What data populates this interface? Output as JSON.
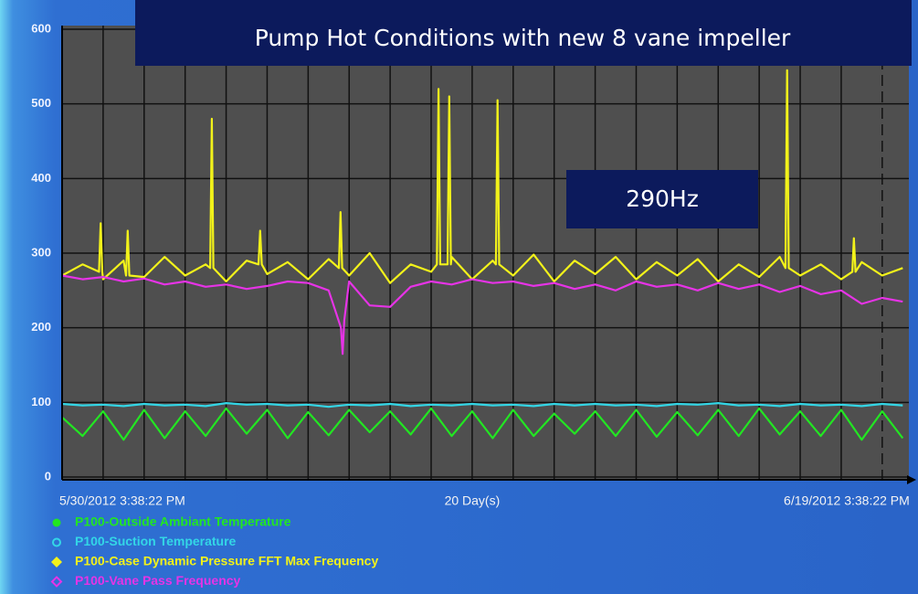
{
  "chart_data": {
    "type": "line",
    "title": "Pump Hot Conditions with new 8 vane impeller",
    "annotation": "290Hz",
    "x_span_label": "20 Day(s)",
    "xlim": [
      0,
      20.65
    ],
    "xticks": [
      {
        "value": 0,
        "label": "5/30/2012 3:38:22 PM"
      },
      {
        "value": 20,
        "label": "6/19/2012 3:38:22 PM"
      }
    ],
    "xminor_ticks": [
      1,
      2,
      3,
      4,
      5,
      6,
      7,
      8,
      9,
      10,
      11,
      12,
      13,
      14,
      15,
      16,
      17,
      18,
      19
    ],
    "ylim": [
      0,
      600
    ],
    "yticks": [
      0,
      100,
      200,
      300,
      400,
      500,
      600
    ],
    "grid": true,
    "series": [
      {
        "name": "P100-Outside Ambiant Temperature",
        "color": "#22e622",
        "marker": "circle",
        "x": [
          0,
          0.5,
          1,
          1.5,
          2,
          2.5,
          3,
          3.5,
          4,
          4.5,
          5,
          5.5,
          6,
          6.5,
          7,
          7.5,
          8,
          8.5,
          9,
          9.5,
          10,
          10.5,
          11,
          11.5,
          12,
          12.5,
          13,
          13.5,
          14,
          14.5,
          15,
          15.5,
          16,
          16.5,
          17,
          17.5,
          18,
          18.5,
          19,
          19.5,
          20,
          20.5
        ],
        "values": [
          80,
          55,
          88,
          50,
          90,
          52,
          88,
          55,
          92,
          58,
          90,
          52,
          87,
          56,
          90,
          60,
          88,
          57,
          92,
          55,
          88,
          52,
          90,
          55,
          85,
          58,
          88,
          55,
          90,
          54,
          87,
          56,
          90,
          55,
          92,
          57,
          88,
          55,
          90,
          50,
          88,
          52
        ]
      },
      {
        "name": "P100-Suction Temperature",
        "color": "#33d6e6",
        "marker": "open-circle",
        "x": [
          0,
          0.5,
          1,
          1.5,
          2,
          2.5,
          3,
          3.5,
          4,
          4.5,
          5,
          5.5,
          6,
          6.5,
          7,
          7.5,
          8,
          8.5,
          9,
          9.5,
          10,
          10.5,
          11,
          11.5,
          12,
          12.5,
          13,
          13.5,
          14,
          14.5,
          15,
          15.5,
          16,
          16.5,
          17,
          17.5,
          18,
          18.5,
          19,
          19.5,
          20,
          20.5
        ],
        "values": [
          98,
          96,
          97,
          95,
          98,
          96,
          97,
          95,
          99,
          97,
          98,
          96,
          97,
          94,
          97,
          96,
          98,
          95,
          97,
          96,
          98,
          96,
          97,
          95,
          98,
          96,
          98,
          96,
          97,
          95,
          98,
          97,
          99,
          96,
          97,
          95,
          98,
          96,
          97,
          95,
          98,
          96
        ]
      },
      {
        "name": "P100-Case Dynamic Pressure FFT Max Frequency",
        "color": "#f2f21a",
        "marker": "diamond",
        "x": [
          0,
          0.5,
          0.9,
          0.94,
          0.98,
          1,
          1.5,
          1.56,
          1.6,
          1.64,
          2,
          2.5,
          3,
          3.5,
          3.61,
          3.65,
          3.69,
          4,
          4.5,
          4.79,
          4.83,
          4.87,
          5,
          5.5,
          6,
          6.5,
          6.75,
          6.79,
          6.83,
          7,
          7.5,
          8,
          8.5,
          9,
          9.14,
          9.18,
          9.22,
          9.4,
          9.44,
          9.48,
          9.5,
          10,
          10.5,
          10.58,
          10.62,
          10.66,
          11,
          11.5,
          12,
          12.5,
          13,
          13.5,
          14,
          14.5,
          15,
          15.5,
          16,
          16.5,
          17,
          17.5,
          17.64,
          17.68,
          17.72,
          18,
          18.5,
          19,
          19.27,
          19.31,
          19.35,
          19.5,
          20,
          20.5
        ],
        "values": [
          270,
          285,
          275,
          340,
          275,
          265,
          290,
          270,
          330,
          270,
          268,
          295,
          270,
          285,
          280,
          480,
          280,
          262,
          290,
          285,
          330,
          285,
          272,
          288,
          265,
          292,
          280,
          355,
          280,
          270,
          300,
          260,
          285,
          275,
          285,
          520,
          285,
          285,
          510,
          285,
          295,
          265,
          290,
          285,
          505,
          285,
          270,
          298,
          262,
          290,
          272,
          295,
          265,
          288,
          270,
          292,
          262,
          285,
          268,
          295,
          280,
          545,
          280,
          270,
          285,
          265,
          275,
          320,
          275,
          288,
          270,
          280
        ]
      },
      {
        "name": "P100-Vane Pass Frequency",
        "color": "#e633e6",
        "marker": "open-diamond",
        "x": [
          0,
          0.5,
          1,
          1.5,
          2,
          2.5,
          3,
          3.5,
          4,
          4.5,
          5,
          5.5,
          6,
          6.5,
          6.8,
          6.84,
          6.88,
          7,
          7.5,
          8,
          8.5,
          9,
          9.5,
          10,
          10.5,
          11,
          11.5,
          12,
          12.5,
          13,
          13.5,
          14,
          14.5,
          15,
          15.5,
          16,
          16.5,
          17,
          17.5,
          18,
          18.5,
          19,
          19.5,
          20,
          20.5
        ],
        "values": [
          270,
          265,
          268,
          262,
          266,
          258,
          262,
          255,
          258,
          252,
          256,
          262,
          260,
          250,
          200,
          165,
          210,
          262,
          230,
          228,
          255,
          262,
          258,
          265,
          260,
          262,
          256,
          260,
          252,
          258,
          250,
          262,
          255,
          258,
          250,
          260,
          252,
          258,
          248,
          256,
          245,
          250,
          232,
          240,
          235
        ]
      }
    ]
  }
}
